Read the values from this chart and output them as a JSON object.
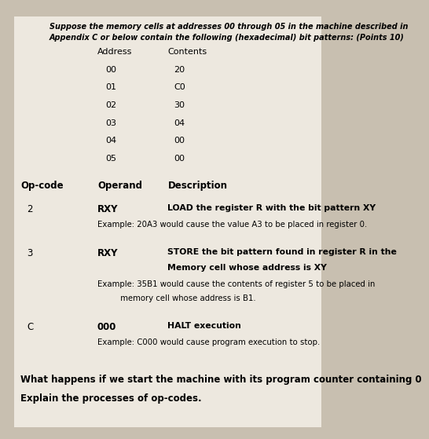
{
  "bg_color": "#c8bfb0",
  "paper_color": "#ede8df",
  "title_line1": "Suppose the memory cells at addresses 00 through 05 in the machine described in",
  "title_line2": "Appendix C or below contain the following (hexadecimal) bit patterns: (Points 10)",
  "table_rows": [
    [
      "00",
      "20"
    ],
    [
      "01",
      "C0"
    ],
    [
      "02",
      "30"
    ],
    [
      "03",
      "04"
    ],
    [
      "04",
      "00"
    ],
    [
      "05",
      "00"
    ]
  ],
  "instructions": [
    {
      "opcode": "2",
      "operand": "RXY",
      "desc_bold_line1": "LOAD the register R with the bit pattern XY",
      "desc_bold_line2": "",
      "desc_example_line1": "Example: 20A3 would cause the value A3 to be placed in register 0.",
      "desc_example_line2": ""
    },
    {
      "opcode": "3",
      "operand": "RXY",
      "desc_bold_line1": "STORE the bit pattern found in register R in the",
      "desc_bold_line2": "Memory cell whose address is XY",
      "desc_example_line1": "Example: 35B1 would cause the contents of register 5 to be placed in",
      "desc_example_line2": "         memory cell whose address is B1."
    },
    {
      "opcode": "C",
      "operand": "000",
      "desc_bold_line1": "HALT execution",
      "desc_bold_line2": "",
      "desc_example_line1": "Example: C000 would cause program execution to stop.",
      "desc_example_line2": ""
    }
  ],
  "question_line1": "What happens if we start the machine with its program counter containing 0",
  "question_line2": "Explain the processes of op-codes."
}
